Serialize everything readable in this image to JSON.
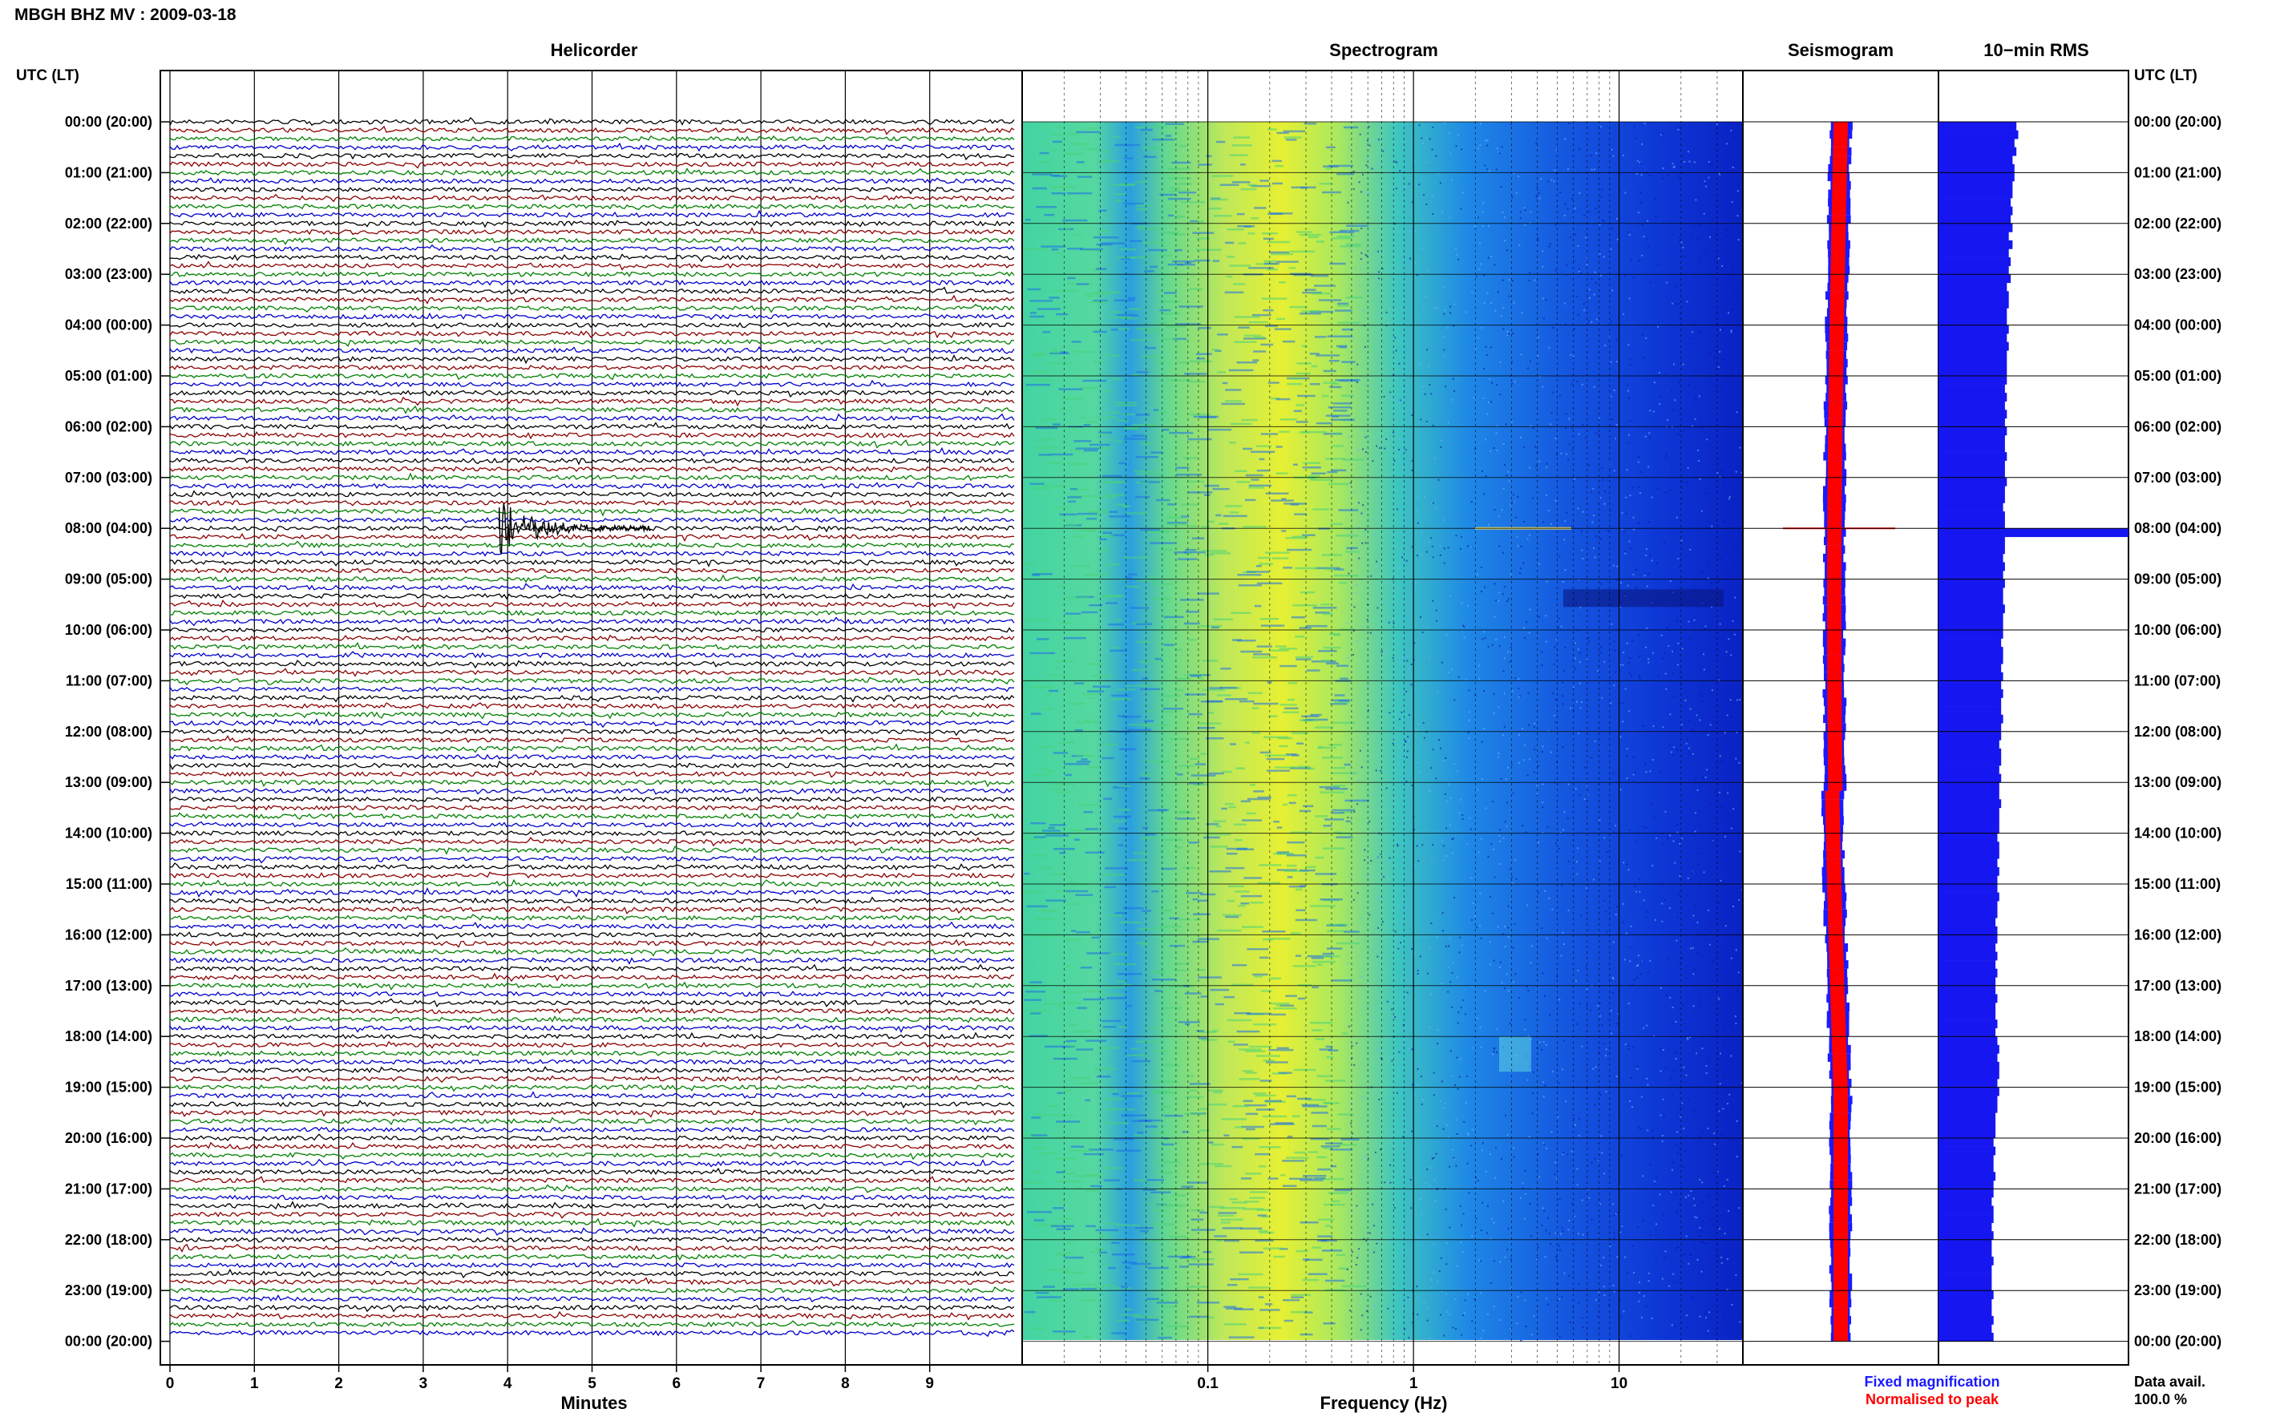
{
  "header": {
    "station_title": "MBGH BHZ MV : 2009-03-18",
    "left_axis_label": "UTC (LT)",
    "right_axis_label": "UTC (LT)"
  },
  "panels": {
    "helicorder_title": "Helicorder",
    "spectrogram_title": "Spectrogram",
    "seismogram_title": "Seismogram",
    "rms_title": "10−min RMS"
  },
  "axes": {
    "minutes_label": "Minutes",
    "frequency_label": "Frequency (Hz)"
  },
  "legend": {
    "fixed": "Fixed magnification",
    "fixed_color": "#1a1aff",
    "normalised": "Normalised to peak",
    "normalised_color": "#ff0000"
  },
  "data_availability": {
    "label": "Data avail.",
    "value": "100.0 %"
  },
  "colors": {
    "trace_cycle": [
      "#000000",
      "#8b0000",
      "#008000",
      "#0000cd"
    ],
    "rms_bar": "#1616f0",
    "spectrogram_low": "#4fd6a0",
    "spectrogram_peak": "#e8f030",
    "spectrogram_high": "#0a2fd0"
  },
  "chart_data": [
    {
      "type": "line",
      "name": "helicorder",
      "title": "Helicorder",
      "xlabel": "Minutes",
      "xlim": [
        0,
        10
      ],
      "x_ticks": [
        0,
        1,
        2,
        3,
        4,
        5,
        6,
        7,
        8,
        9
      ],
      "y_tick_labels": [
        "00:00 (20:00)",
        "01:00 (21:00)",
        "02:00 (22:00)",
        "03:00 (23:00)",
        "04:00 (00:00)",
        "05:00 (01:00)",
        "06:00 (02:00)",
        "07:00 (03:00)",
        "08:00 (04:00)",
        "09:00 (05:00)",
        "10:00 (06:00)",
        "11:00 (07:00)",
        "12:00 (08:00)",
        "13:00 (09:00)",
        "14:00 (10:00)",
        "15:00 (11:00)",
        "16:00 (12:00)",
        "17:00 (13:00)",
        "18:00 (14:00)",
        "19:00 (15:00)",
        "20:00 (16:00)",
        "21:00 (17:00)",
        "22:00 (18:00)",
        "23:00 (19:00)",
        "00:00 (20:00)"
      ],
      "traces_per_hour": 6,
      "trace_minutes": 10,
      "hours": 24,
      "event": {
        "hour": 8,
        "minute": 3.9,
        "label": "08:00 (04:00)"
      }
    },
    {
      "type": "heatmap",
      "name": "spectrogram",
      "title": "Spectrogram",
      "xlabel": "Frequency (Hz)",
      "xscale": "log",
      "xlim": [
        0.0125,
        40
      ],
      "x_tick_labels": [
        "0.1",
        "1",
        "10"
      ],
      "x_tick_values": [
        0.1,
        1,
        10
      ]
    },
    {
      "type": "line",
      "name": "seismogram",
      "title": "Seismogram",
      "series": [
        {
          "name": "Fixed magnification",
          "color": "#1a1aff"
        },
        {
          "name": "Normalised to peak",
          "color": "#ff0000"
        }
      ]
    },
    {
      "type": "bar",
      "name": "rms",
      "title": "10−min RMS",
      "orientation": "horizontal",
      "values_relative": [
        0.41,
        0.42,
        0.4,
        0.41,
        0.39,
        0.4,
        0.4,
        0.39,
        0.39,
        0.38,
        0.39,
        0.38,
        0.39,
        0.37,
        0.39,
        0.37,
        0.38,
        0.37,
        0.38,
        0.36,
        0.37,
        0.37,
        0.36,
        0.36,
        0.37,
        0.36,
        0.37,
        0.36,
        0.36,
        0.36,
        0.36,
        0.35,
        0.36,
        0.35,
        0.36,
        0.35,
        0.36,
        0.35,
        0.35,
        0.36,
        0.35,
        0.35,
        0.36,
        0.35,
        0.35,
        0.34,
        0.35,
        0.35,
        1.0,
        0.35,
        0.35,
        0.34,
        0.35,
        0.34,
        0.35,
        0.34,
        0.34,
        0.35,
        0.34,
        0.34,
        0.34,
        0.33,
        0.34,
        0.34,
        0.33,
        0.34,
        0.33,
        0.34,
        0.33,
        0.33,
        0.34,
        0.33,
        0.33,
        0.32,
        0.33,
        0.33,
        0.32,
        0.33,
        0.32,
        0.32,
        0.33,
        0.32,
        0.32,
        0.32,
        0.31,
        0.32,
        0.32,
        0.31,
        0.32,
        0.31,
        0.31,
        0.32,
        0.31,
        0.31,
        0.3,
        0.31,
        0.31,
        0.3,
        0.31,
        0.3,
        0.31,
        0.3,
        0.3,
        0.31,
        0.3,
        0.3,
        0.31,
        0.3,
        0.31,
        0.32,
        0.31,
        0.32,
        0.32,
        0.31,
        0.32,
        0.31,
        0.31,
        0.3,
        0.3,
        0.3,
        0.29,
        0.3,
        0.29,
        0.29,
        0.3,
        0.29,
        0.29,
        0.28,
        0.29,
        0.29,
        0.28,
        0.29,
        0.28,
        0.28,
        0.29,
        0.28,
        0.28,
        0.28,
        0.29,
        0.28,
        0.28,
        0.29,
        0.28,
        0.29
      ]
    }
  ]
}
